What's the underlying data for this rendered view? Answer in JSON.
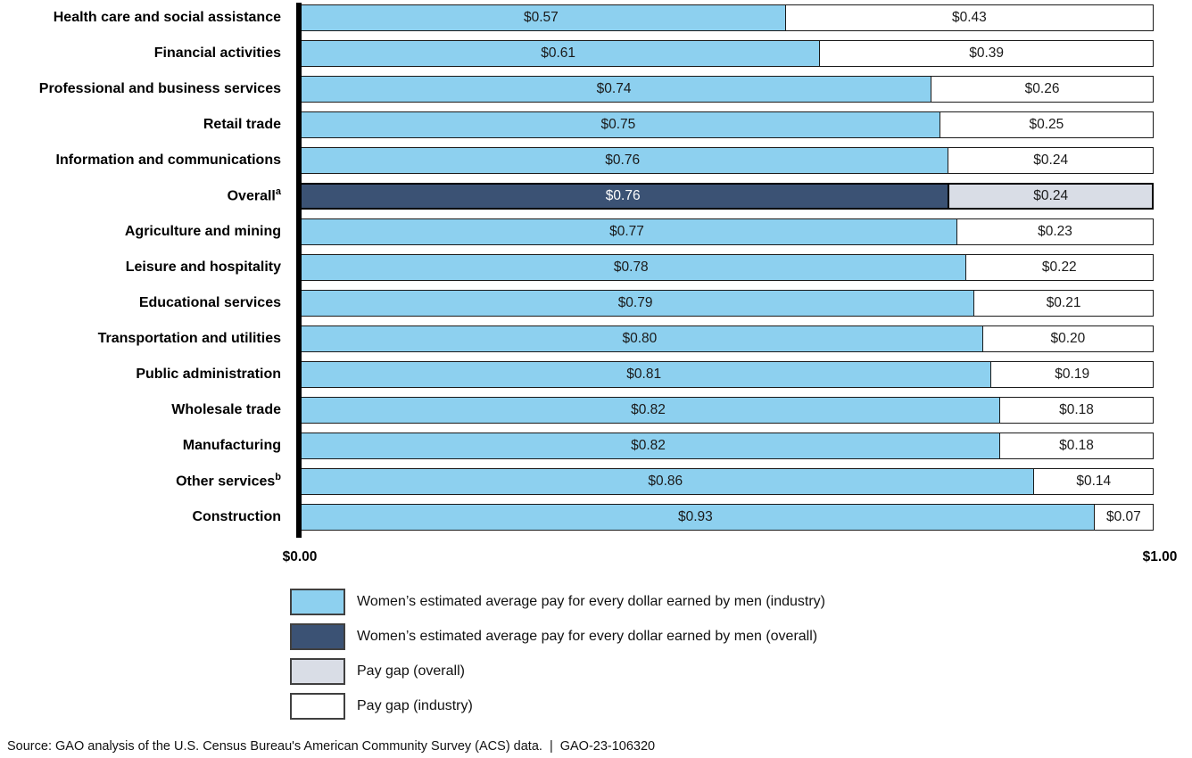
{
  "chart_data": {
    "type": "bar",
    "orientation": "horizontal",
    "stacked": true,
    "xlim": [
      0,
      1
    ],
    "x_axis_labels": {
      "min": "$0.00",
      "max": "$1.00"
    },
    "grid": false,
    "legend_position": "bottom",
    "rows": [
      {
        "label": "Health care and social assistance",
        "sup": "",
        "pay": 0.57,
        "gap": 0.43,
        "pay_label": "$0.57",
        "gap_label": "$0.43",
        "overall": false
      },
      {
        "label": "Financial activities",
        "sup": "",
        "pay": 0.61,
        "gap": 0.39,
        "pay_label": "$0.61",
        "gap_label": "$0.39",
        "overall": false
      },
      {
        "label": "Professional and business services",
        "sup": "",
        "pay": 0.74,
        "gap": 0.26,
        "pay_label": "$0.74",
        "gap_label": "$0.26",
        "overall": false
      },
      {
        "label": "Retail trade",
        "sup": "",
        "pay": 0.75,
        "gap": 0.25,
        "pay_label": "$0.75",
        "gap_label": "$0.25",
        "overall": false
      },
      {
        "label": "Information and communications",
        "sup": "",
        "pay": 0.76,
        "gap": 0.24,
        "pay_label": "$0.76",
        "gap_label": "$0.24",
        "overall": false
      },
      {
        "label": "Overall",
        "sup": "a",
        "pay": 0.76,
        "gap": 0.24,
        "pay_label": "$0.76",
        "gap_label": "$0.24",
        "overall": true
      },
      {
        "label": "Agriculture and mining",
        "sup": "",
        "pay": 0.77,
        "gap": 0.23,
        "pay_label": "$0.77",
        "gap_label": "$0.23",
        "overall": false
      },
      {
        "label": "Leisure and hospitality",
        "sup": "",
        "pay": 0.78,
        "gap": 0.22,
        "pay_label": "$0.78",
        "gap_label": "$0.22",
        "overall": false
      },
      {
        "label": "Educational services",
        "sup": "",
        "pay": 0.79,
        "gap": 0.21,
        "pay_label": "$0.79",
        "gap_label": "$0.21",
        "overall": false
      },
      {
        "label": "Transportation and utilities",
        "sup": "",
        "pay": 0.8,
        "gap": 0.2,
        "pay_label": "$0.80",
        "gap_label": "$0.20",
        "overall": false
      },
      {
        "label": "Public administration",
        "sup": "",
        "pay": 0.81,
        "gap": 0.19,
        "pay_label": "$0.81",
        "gap_label": "$0.19",
        "overall": false
      },
      {
        "label": "Wholesale trade",
        "sup": "",
        "pay": 0.82,
        "gap": 0.18,
        "pay_label": "$0.82",
        "gap_label": "$0.18",
        "overall": false
      },
      {
        "label": "Manufacturing",
        "sup": "",
        "pay": 0.82,
        "gap": 0.18,
        "pay_label": "$0.82",
        "gap_label": "$0.18",
        "overall": false
      },
      {
        "label": "Other services",
        "sup": "b",
        "pay": 0.86,
        "gap": 0.14,
        "pay_label": "$0.86",
        "gap_label": "$0.14",
        "overall": false
      },
      {
        "label": "Construction",
        "sup": "",
        "pay": 0.93,
        "gap": 0.07,
        "pay_label": "$0.93",
        "gap_label": "$0.07",
        "overall": false
      }
    ],
    "legend": [
      {
        "key": "industry-pay",
        "color": "#8dd0ef",
        "border": "#404040",
        "label": "Women’s estimated average pay for every dollar earned by men (industry)"
      },
      {
        "key": "overall-pay",
        "color": "#3b5274",
        "border": "#404040",
        "label": "Women’s estimated average pay for every dollar earned by men (overall)"
      },
      {
        "key": "overall-gap",
        "color": "#d9dde6",
        "border": "#404040",
        "label": "Pay gap (overall)"
      },
      {
        "key": "industry-gap",
        "color": "#ffffff",
        "border": "#404040",
        "label": "Pay gap (industry)"
      }
    ]
  },
  "colors": {
    "industry_pay": "#8dd0ef",
    "overall_pay": "#3b5274",
    "overall_gap": "#d9dde6",
    "industry_gap": "#ffffff",
    "bar_border": "#1a1a1a",
    "overall_border": "#000000",
    "axis_line": "#000000"
  },
  "source": {
    "text": "Source: GAO analysis of the U.S. Census Bureau's American Community Survey (ACS) data.",
    "separator": "|",
    "report_id": "GAO-23-106320"
  }
}
